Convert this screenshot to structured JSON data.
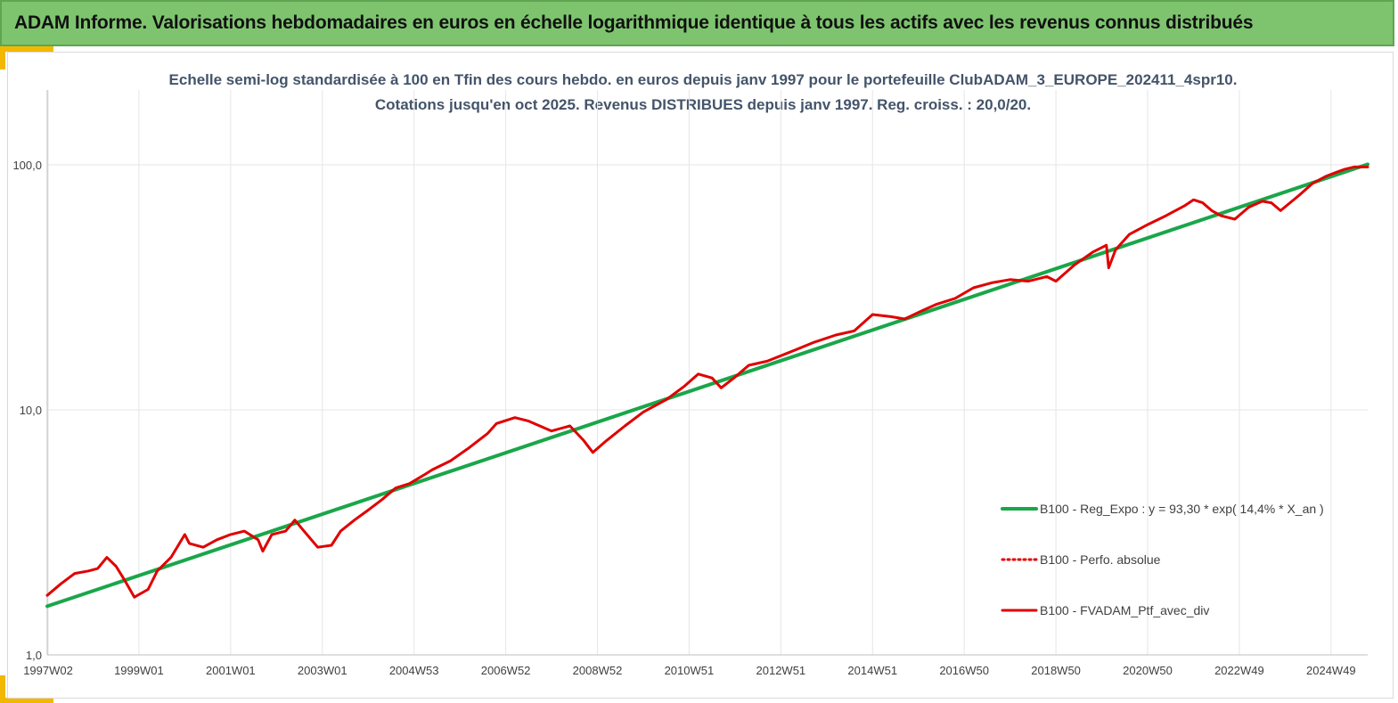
{
  "banner": {
    "title": "ADAM Informe. Valorisations hebdomadaires en euros en échelle logarithmique identique à tous les actifs avec les revenus connus distribués"
  },
  "colors": {
    "banner_bg": "#7ec46f",
    "accent": "#f2b800",
    "regression": "#1aa64a",
    "portfolio": "#e00000"
  },
  "chart_data": {
    "type": "line",
    "title": "Echelle semi-log standardisée à 100 en Tfin des cours hebdo.  en euros depuis janv 1997 pour le portefeuille ClubADAM_3_EUROPE_202411_4spr10.",
    "subtitle": "Cotations jusqu'en oct 2025. Revenus DISTRIBUES depuis janv 1997. Reg. croiss. : 20,0/20.",
    "y_scale": "log",
    "ylim": [
      1,
      100
    ],
    "y_ticks": [
      {
        "value": 1,
        "label": "1,0"
      },
      {
        "value": 10,
        "label": "10,0"
      },
      {
        "value": 100,
        "label": "100,0"
      }
    ],
    "xlim": [
      1997.0,
      2025.8
    ],
    "x_ticks": [
      {
        "value": 1997.02,
        "label": "1997W02"
      },
      {
        "value": 1999.0,
        "label": "1999W01"
      },
      {
        "value": 2001.0,
        "label": "2001W01"
      },
      {
        "value": 2003.0,
        "label": "2003W01"
      },
      {
        "value": 2005.0,
        "label": "2004W53"
      },
      {
        "value": 2007.0,
        "label": "2006W52"
      },
      {
        "value": 2009.0,
        "label": "2008W52"
      },
      {
        "value": 2011.0,
        "label": "2010W51"
      },
      {
        "value": 2013.0,
        "label": "2012W51"
      },
      {
        "value": 2015.0,
        "label": "2014W51"
      },
      {
        "value": 2017.0,
        "label": "2016W50"
      },
      {
        "value": 2019.0,
        "label": "2018W50"
      },
      {
        "value": 2021.0,
        "label": "2020W50"
      },
      {
        "value": 2023.0,
        "label": "2022W49"
      },
      {
        "value": 2025.0,
        "label": "2024W49"
      }
    ],
    "grid": "vertical",
    "legend_position": "bottom-right",
    "series": [
      {
        "name": "B100 - Reg_Expo : y = 93,30 * exp( 14,4% *  X_an )",
        "style": "solid-thick",
        "color": "#1aa64a",
        "x": [
          1997.0,
          2025.8
        ],
        "y": [
          1.58,
          100.5
        ]
      },
      {
        "name": "B100 - Perfo. absolue",
        "style": "dotted",
        "color": "#e00000",
        "x": [],
        "y": []
      },
      {
        "name": "B100 - FVADAM_Ptf_avec_div",
        "style": "solid",
        "color": "#e00000",
        "x": [
          1997.0,
          1997.3,
          1997.6,
          1997.9,
          1998.1,
          1998.3,
          1998.5,
          1998.7,
          1998.9,
          1999.2,
          1999.4,
          1999.7,
          2000.0,
          2000.1,
          2000.4,
          2000.7,
          2001.0,
          2001.3,
          2001.6,
          2001.7,
          2001.9,
          2002.2,
          2002.4,
          2002.6,
          2002.9,
          2003.2,
          2003.4,
          2003.7,
          2004.0,
          2004.3,
          2004.6,
          2004.9,
          2005.2,
          2005.4,
          2005.8,
          2006.2,
          2006.6,
          2006.8,
          2007.2,
          2007.5,
          2008.0,
          2008.4,
          2008.7,
          2008.9,
          2009.2,
          2009.6,
          2010.0,
          2010.5,
          2010.9,
          2011.2,
          2011.5,
          2011.7,
          2012.0,
          2012.3,
          2012.7,
          2013.2,
          2013.7,
          2014.2,
          2014.6,
          2015.0,
          2015.4,
          2015.7,
          2016.1,
          2016.4,
          2016.8,
          2017.2,
          2017.6,
          2018.0,
          2018.4,
          2018.8,
          2019.0,
          2019.4,
          2019.8,
          2020.1,
          2020.15,
          2020.3,
          2020.6,
          2021.0,
          2021.4,
          2021.8,
          2022.0,
          2022.2,
          2022.4,
          2022.6,
          2022.9,
          2023.2,
          2023.5,
          2023.7,
          2023.9,
          2024.3,
          2024.6,
          2024.9,
          2025.1,
          2025.3,
          2025.5,
          2025.8
        ],
        "y": [
          1.75,
          1.95,
          2.15,
          2.2,
          2.25,
          2.5,
          2.3,
          2.0,
          1.72,
          1.85,
          2.2,
          2.5,
          3.1,
          2.85,
          2.75,
          2.95,
          3.1,
          3.2,
          2.95,
          2.65,
          3.1,
          3.2,
          3.55,
          3.2,
          2.75,
          2.8,
          3.2,
          3.55,
          3.9,
          4.3,
          4.8,
          5.0,
          5.4,
          5.7,
          6.2,
          7.0,
          8.0,
          8.8,
          9.3,
          9.0,
          8.2,
          8.6,
          7.5,
          6.7,
          7.5,
          8.6,
          9.8,
          11.0,
          12.5,
          14.0,
          13.5,
          12.3,
          13.6,
          15.2,
          15.8,
          17.2,
          18.8,
          20.2,
          21.0,
          24.5,
          24.0,
          23.5,
          25.5,
          27.0,
          28.5,
          31.5,
          33.0,
          34.0,
          33.5,
          35.0,
          33.5,
          39.0,
          44.0,
          47.0,
          38.0,
          45.0,
          52.0,
          57.0,
          62.0,
          68.0,
          72.0,
          70.0,
          65.0,
          62.0,
          60.0,
          67.0,
          71.0,
          70.0,
          65.0,
          75.0,
          84.0,
          90.0,
          93.0,
          96.0,
          98.0,
          98.0
        ]
      }
    ]
  }
}
